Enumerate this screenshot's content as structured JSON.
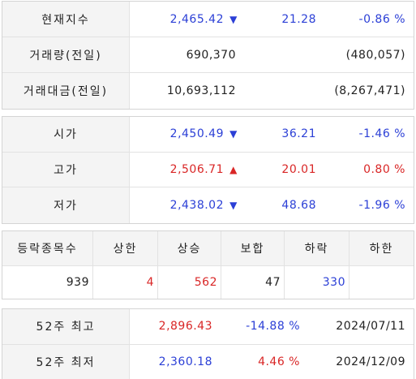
{
  "index": {
    "label": "현재지수",
    "value": "2,465.42",
    "arrow": "▼",
    "change": "21.28",
    "percent": "-0.86 %"
  },
  "volume": {
    "label": "거래량(전일)",
    "value": "690,370",
    "prev": "(480,057)"
  },
  "amount": {
    "label": "거래대금(전일)",
    "value": "10,693,112",
    "prev": "(8,267,471)"
  },
  "prices": [
    {
      "label": "시가",
      "value": "2,450.49",
      "arrow": "▼",
      "change": "36.21",
      "percent": "-1.46 %",
      "color": "#2b3fd6"
    },
    {
      "label": "고가",
      "value": "2,506.71",
      "arrow": "▲",
      "change": "20.01",
      "percent": "0.80 %",
      "color": "#d92626"
    },
    {
      "label": "저가",
      "value": "2,438.02",
      "arrow": "▼",
      "change": "48.68",
      "percent": "-1.96 %",
      "color": "#2b3fd6"
    }
  ],
  "breadth": {
    "headers": [
      "등락종목수",
      "상한",
      "상승",
      "보합",
      "하락",
      "하한"
    ],
    "values": [
      "939",
      "4",
      "562",
      "47",
      "330",
      ""
    ]
  },
  "week52": {
    "high": {
      "label": "52주 최고",
      "value": "2,896.43",
      "percent": "-14.88 %",
      "date": "2024/07/11"
    },
    "low": {
      "label": "52주 최저",
      "value": "2,360.18",
      "percent": "4.46 %",
      "date": "2024/12/09"
    }
  },
  "colors": {
    "up": "#d92626",
    "down": "#2b3fd6",
    "label_bg": "#f4f4f4",
    "border": "#d4d4d4"
  }
}
